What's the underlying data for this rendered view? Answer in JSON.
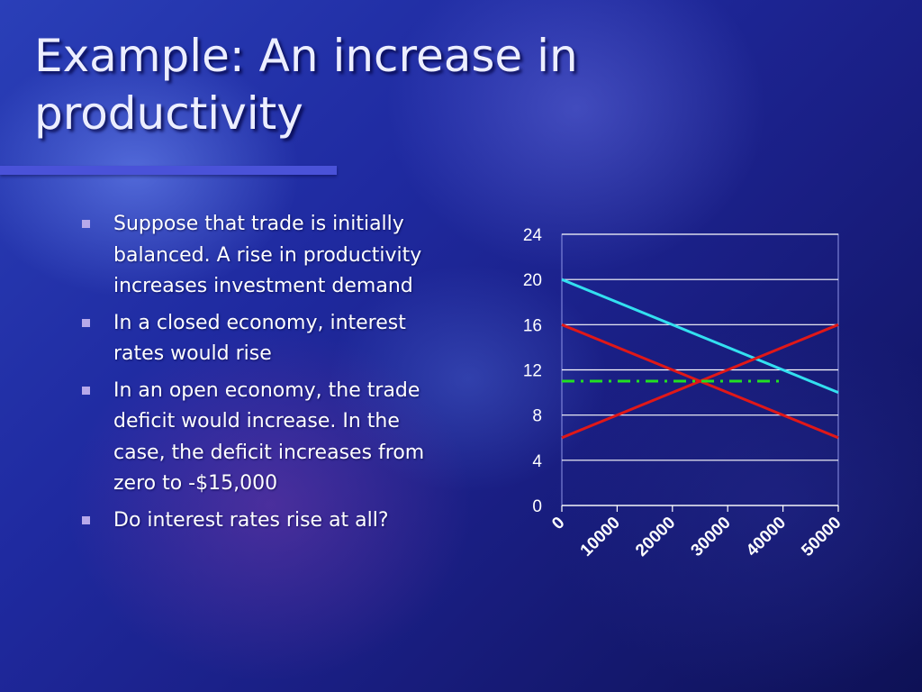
{
  "slide": {
    "title": "Example: An increase in productivity",
    "bullets": [
      "Suppose that trade is initially balanced.  A rise in productivity increases investment demand",
      "In a closed economy, interest rates would rise",
      "In an open economy, the trade deficit would increase.  In the case, the deficit increases from zero to -$15,000",
      "Do interest rates rise at all?"
    ]
  },
  "chart_data": {
    "type": "line",
    "x": [
      0,
      10000,
      20000,
      30000,
      40000,
      50000
    ],
    "x_tick_labels": [
      "0",
      "10000",
      "20000",
      "30000",
      "40000",
      "50000"
    ],
    "y_tick_labels": [
      "0",
      "4",
      "8",
      "12",
      "16",
      "20",
      "24"
    ],
    "xlim": [
      0,
      50000
    ],
    "ylim": [
      0,
      24
    ],
    "grid": "horizontal",
    "series": [
      {
        "color": "#33e0f0",
        "style": "solid",
        "points": [
          [
            0,
            20
          ],
          [
            50000,
            10
          ]
        ]
      },
      {
        "color": "#e01818",
        "style": "solid",
        "points": [
          [
            0,
            16
          ],
          [
            50000,
            6
          ]
        ]
      },
      {
        "color": "#e01818",
        "style": "solid",
        "points": [
          [
            0,
            6
          ],
          [
            50000,
            16
          ]
        ]
      },
      {
        "color": "#22e022",
        "style": "dash-dot",
        "points": [
          [
            0,
            11
          ],
          [
            40000,
            11
          ]
        ]
      }
    ]
  }
}
